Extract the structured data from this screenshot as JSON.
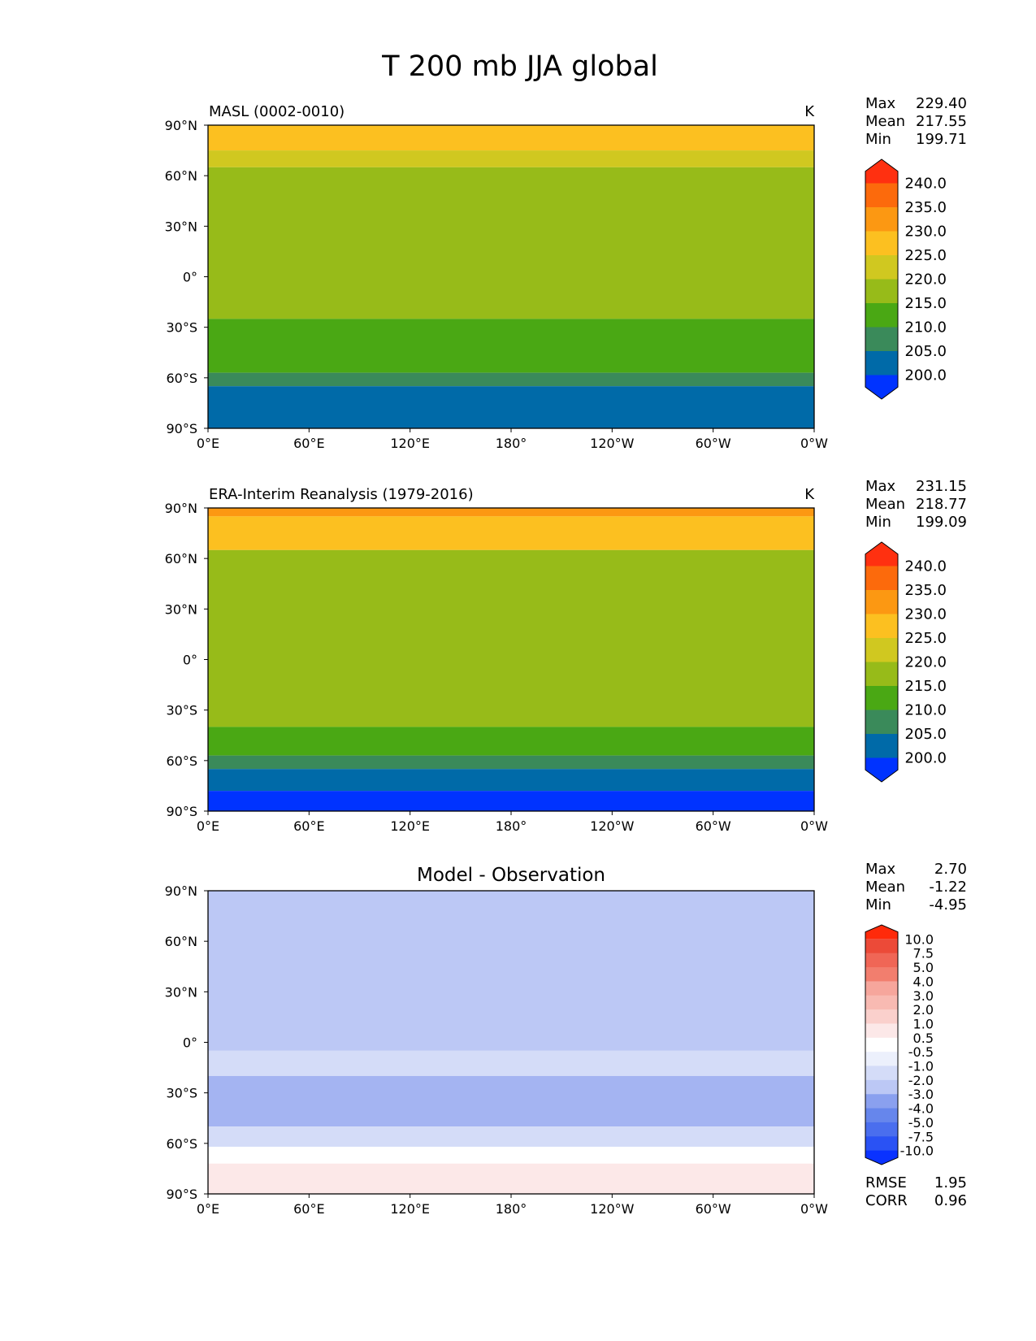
{
  "title": "T 200 mb JJA global",
  "stat_labels": {
    "max": "Max",
    "mean": "Mean",
    "min": "Min",
    "rmse": "RMSE",
    "corr": "CORR"
  },
  "axes": {
    "lat_ticks": [
      "90°N",
      "60°N",
      "30°N",
      "0°",
      "30°S",
      "60°S",
      "90°S"
    ],
    "lon_ticks": [
      "0°E",
      "60°E",
      "120°E",
      "180°",
      "120°W",
      "60°W",
      "0°W"
    ]
  },
  "colors": {
    "abs_bins": [
      "#0033ff",
      "#006aa8",
      "#3a8a5a",
      "#4aa814",
      "#97bb19",
      "#d0c820",
      "#fcc020",
      "#fc9812",
      "#fc6a0c",
      "#ff3010"
    ],
    "diff_bins": [
      "#0a32ff",
      "#2a52f4",
      "#4a6eee",
      "#6686ec",
      "#8aa0ef",
      "#a4b4f2",
      "#bcc8f5",
      "#d4dcf8",
      "#ecf0fc",
      "#ffffff",
      "#fce8e8",
      "#fad0cc",
      "#f8bab2",
      "#f6a69c",
      "#f49486",
      "#f27e6e",
      "#f06656",
      "#ec4a38",
      "#ff2a0a"
    ]
  },
  "chart_data": [
    {
      "type": "heatmap",
      "subtitle": "MASL (0002-0010)",
      "units": "K",
      "stats": {
        "max": "229.40",
        "mean": "217.55",
        "min": "199.71"
      },
      "colorbar_levels": [
        "240.0",
        "235.0",
        "230.0",
        "225.0",
        "220.0",
        "215.0",
        "210.0",
        "205.0",
        "200.0"
      ],
      "lat_range": [
        -90,
        90
      ],
      "lon_range": [
        0,
        360
      ],
      "lat_bands": [
        {
          "lat": [
            75,
            90
          ],
          "value": 227.5
        },
        {
          "lat": [
            65,
            75
          ],
          "value": 222.5
        },
        {
          "lat": [
            -25,
            65
          ],
          "value": 217.5
        },
        {
          "lat": [
            -57,
            -25
          ],
          "value": 212.5
        },
        {
          "lat": [
            -65,
            -57
          ],
          "value": 207.5
        },
        {
          "lat": [
            -90,
            -65
          ],
          "value": 202.5
        }
      ]
    },
    {
      "type": "heatmap",
      "subtitle": "ERA-Interim Reanalysis (1979-2016)",
      "units": "K",
      "stats": {
        "max": "231.15",
        "mean": "218.77",
        "min": "199.09"
      },
      "colorbar_levels": [
        "240.0",
        "235.0",
        "230.0",
        "225.0",
        "220.0",
        "215.0",
        "210.0",
        "205.0",
        "200.0"
      ],
      "lat_range": [
        -90,
        90
      ],
      "lon_range": [
        0,
        360
      ],
      "lat_bands": [
        {
          "lat": [
            85,
            90
          ],
          "value": 232.5
        },
        {
          "lat": [
            65,
            85
          ],
          "value": 227.5
        },
        {
          "lat": [
            -40,
            65
          ],
          "value": 217.5
        },
        {
          "lat": [
            -57,
            -40
          ],
          "value": 212.5
        },
        {
          "lat": [
            -65,
            -57
          ],
          "value": 207.5
        },
        {
          "lat": [
            -78,
            -65
          ],
          "value": 202.5
        },
        {
          "lat": [
            -90,
            -78
          ],
          "value": 197.5
        }
      ]
    },
    {
      "type": "heatmap",
      "subtitle": "Model - Observation",
      "units": "",
      "stats": {
        "max": "2.70",
        "mean": "-1.22",
        "min": "-4.95"
      },
      "metrics": {
        "rmse": "1.95",
        "corr": "0.96"
      },
      "colorbar_levels": [
        "10.0",
        "7.5",
        "5.0",
        "4.0",
        "3.0",
        "2.0",
        "1.0",
        "0.5",
        "-0.5",
        "-1.0",
        "-2.0",
        "-3.0",
        "-4.0",
        "-5.0",
        "-7.5",
        "-10.0"
      ],
      "lat_range": [
        -90,
        90
      ],
      "lon_range": [
        0,
        360
      ],
      "lat_bands": [
        {
          "lat": [
            -5,
            90
          ],
          "value": -2.5
        },
        {
          "lat": [
            -20,
            -5
          ],
          "value": -1.5
        },
        {
          "lat": [
            -50,
            -20
          ],
          "value": -3.5
        },
        {
          "lat": [
            -62,
            -50
          ],
          "value": -1.5
        },
        {
          "lat": [
            -72,
            -62
          ],
          "value": 0
        },
        {
          "lat": [
            -90,
            -72
          ],
          "value": 0.75
        }
      ]
    }
  ]
}
